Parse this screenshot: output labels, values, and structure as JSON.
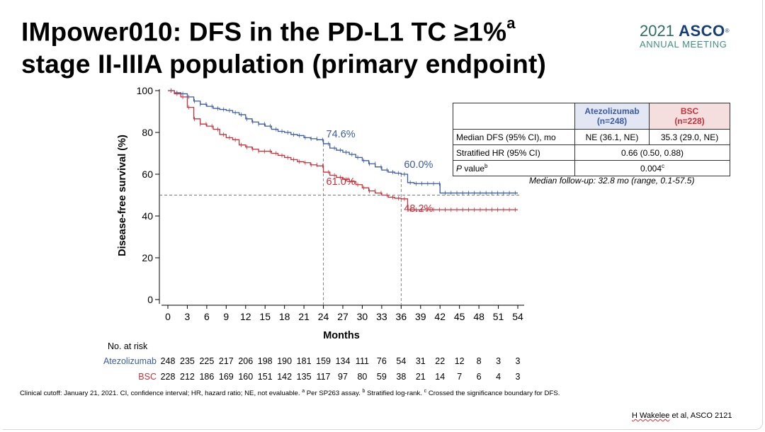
{
  "slide": {
    "title_line1": "IMpower010: DFS in the PD-L1 TC ≥1%",
    "title_sup": "a",
    "title_line2": "stage II-IIIA population (primary endpoint)",
    "logo_year": "2021",
    "logo_org": "ASCO",
    "logo_sub": "ANNUAL MEETING",
    "footnote": "Clinical cutoff: January 21, 2021. CI, confidence interval; HR, hazard ratio; NE, not evaluable.",
    "footnote_a": "Per SP263 assay.",
    "footnote_b": "Stratified log-rank.",
    "footnote_c": "Crossed the significance boundary for DFS.",
    "credit_name": "H Wakelee",
    "credit_rest": " et al, ASCO 2121"
  },
  "table": {
    "col_atz": "Atezolizumab",
    "col_atz_n": "(n=248)",
    "col_bsc": "BSC",
    "col_bsc_n": "(n=228)",
    "row1_label": "Median DFS (95% CI), mo",
    "row1_atz": "NE (36.1, NE)",
    "row1_bsc": "35.3 (29.0, NE)",
    "row2_label": "Stratified HR (95% CI)",
    "row2_value": "0.66 (0.50, 0.88)",
    "row3_label_italic": "P",
    "row3_label": " value",
    "row3_label_sup": "b",
    "row3_value": "0.004",
    "row3_value_sup": "c",
    "followup": "Median follow-up: 32.8 mo (range, 0.1-57.5)"
  },
  "risk_table": {
    "title": "No. at risk",
    "atz_label": "Atezolizumab",
    "bsc_label": "BSC",
    "atz": [
      248,
      235,
      225,
      217,
      206,
      198,
      190,
      181,
      159,
      134,
      111,
      76,
      54,
      31,
      22,
      12,
      8,
      3,
      3
    ],
    "bsc": [
      228,
      212,
      186,
      169,
      160,
      151,
      142,
      135,
      117,
      97,
      80,
      59,
      38,
      21,
      14,
      7,
      6,
      4,
      3
    ]
  },
  "colors": {
    "atezolizumab": "#3a5aa4",
    "bsc": "#c8303a",
    "reference": "#777777"
  },
  "chart_data": {
    "type": "line",
    "xlabel": "Months",
    "ylabel": "Disease-free survival (%)",
    "xlim": [
      0,
      54
    ],
    "ylim": [
      0,
      100
    ],
    "xticks": [
      0,
      3,
      6,
      9,
      12,
      15,
      18,
      21,
      24,
      27,
      30,
      33,
      36,
      39,
      42,
      45,
      48,
      51,
      54
    ],
    "yticks": [
      0,
      20,
      40,
      60,
      80,
      100
    ],
    "grid": false,
    "reference_lines": {
      "y": 50,
      "x": [
        24,
        36
      ]
    },
    "series": [
      {
        "name": "Atezolizumab",
        "step": true,
        "x": [
          0,
          1,
          2,
          3,
          4,
          5,
          6,
          7,
          8,
          9,
          10,
          11,
          12,
          13,
          14,
          15,
          16,
          17,
          18,
          19,
          20,
          21,
          22,
          23,
          24,
          25,
          26,
          27,
          28,
          29,
          30,
          31,
          32,
          33,
          34,
          35,
          36,
          37,
          38,
          39,
          40,
          41,
          42,
          43,
          48,
          55
        ],
        "values": [
          100,
          99,
          98.5,
          97,
          95,
          93.5,
          92.5,
          91.5,
          91,
          90.5,
          89.5,
          88.5,
          86.5,
          85,
          84,
          83,
          81.5,
          80.5,
          80,
          79,
          78.5,
          77.5,
          77,
          76.5,
          74.6,
          72.5,
          71.5,
          70.5,
          69.5,
          68,
          66.5,
          65,
          63.5,
          62,
          61,
          60.5,
          60.0,
          56,
          55.5,
          55.5,
          55.5,
          55.5,
          51,
          51,
          51,
          51
        ],
        "annotations": [
          {
            "x": 24,
            "label": "74.6%"
          },
          {
            "x": 36,
            "label": "60.0%"
          }
        ]
      },
      {
        "name": "BSC",
        "step": true,
        "x": [
          0,
          1,
          2,
          3,
          4,
          5,
          6,
          7,
          8,
          9,
          10,
          11,
          12,
          13,
          14,
          15,
          16,
          17,
          18,
          19,
          20,
          21,
          22,
          23,
          24,
          25,
          26,
          27,
          28,
          29,
          30,
          31,
          32,
          33,
          34,
          35,
          36,
          37,
          55
        ],
        "values": [
          100,
          98.5,
          97,
          92,
          86.5,
          84,
          83,
          81.5,
          79,
          77.5,
          76.5,
          74,
          73,
          72,
          71,
          71,
          70,
          69,
          68,
          67,
          66,
          65.5,
          64.5,
          64,
          61.0,
          59.5,
          58.5,
          57.5,
          56.5,
          55,
          53.5,
          52,
          51,
          50,
          49,
          48.5,
          48.2,
          43,
          43
        ],
        "annotations": [
          {
            "x": 24,
            "label": "61.0%"
          },
          {
            "x": 36,
            "label": "48.2%"
          }
        ]
      }
    ]
  }
}
